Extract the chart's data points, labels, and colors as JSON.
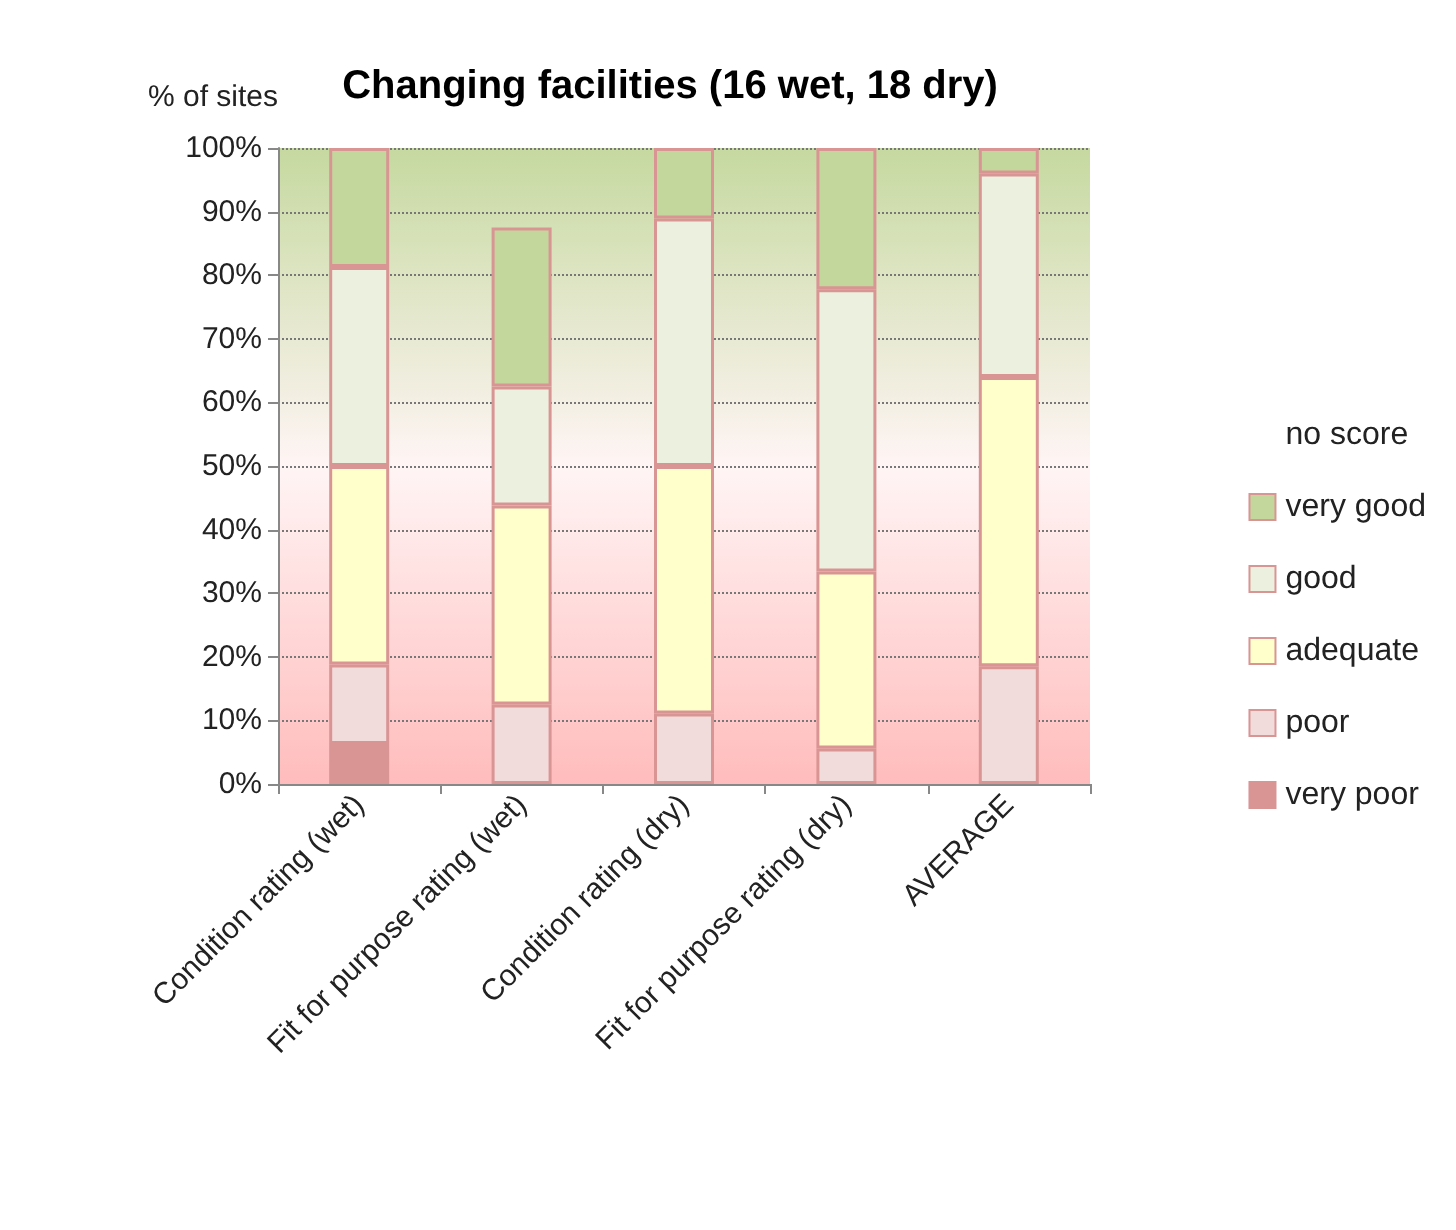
{
  "chart_data": {
    "type": "bar",
    "title": "Changing facilities (16 wet, 18 dry)",
    "ylabel": "% of sites",
    "stacked": true,
    "categories": [
      "Condition rating (wet)",
      "Fit for purpose rating (wet)",
      "Condition rating (dry)",
      "Fit for purpose rating (dry)",
      "AVERAGE"
    ],
    "series": [
      {
        "name": "very poor",
        "color": "#d99594",
        "values": [
          6.3,
          null,
          null,
          null,
          null
        ]
      },
      {
        "name": "poor",
        "color": "#f2dcdb",
        "values": [
          12.5,
          12.5,
          11.1,
          5.6,
          18.5
        ]
      },
      {
        "name": "adequate",
        "color": "#ffffcc",
        "values": [
          31.2,
          31.3,
          38.9,
          27.8,
          45.5
        ]
      },
      {
        "name": "good",
        "color": "#ebf1de",
        "values": [
          31.3,
          18.7,
          38.9,
          44.4,
          32
        ]
      },
      {
        "name": "very good",
        "color": "#c3d69b",
        "values": [
          18.7,
          25,
          11.1,
          22.2,
          4
        ]
      },
      {
        "name": "no score",
        "color": null,
        "values": [
          null,
          null,
          null,
          null,
          null
        ]
      }
    ],
    "ylim": [
      0,
      100
    ],
    "yticks": [
      {
        "value": 0,
        "label": "0%"
      },
      {
        "value": 10,
        "label": "10%"
      },
      {
        "value": 20,
        "label": "20%"
      },
      {
        "value": 30,
        "label": "30%"
      },
      {
        "value": 40,
        "label": "40%"
      },
      {
        "value": 50,
        "label": "50%"
      },
      {
        "value": 60,
        "label": "60%"
      },
      {
        "value": 70,
        "label": "70%"
      },
      {
        "value": 80,
        "label": "80%"
      },
      {
        "value": 90,
        "label": "90%"
      },
      {
        "value": 100,
        "label": "100%"
      }
    ],
    "grid": "y",
    "legend": "right"
  }
}
